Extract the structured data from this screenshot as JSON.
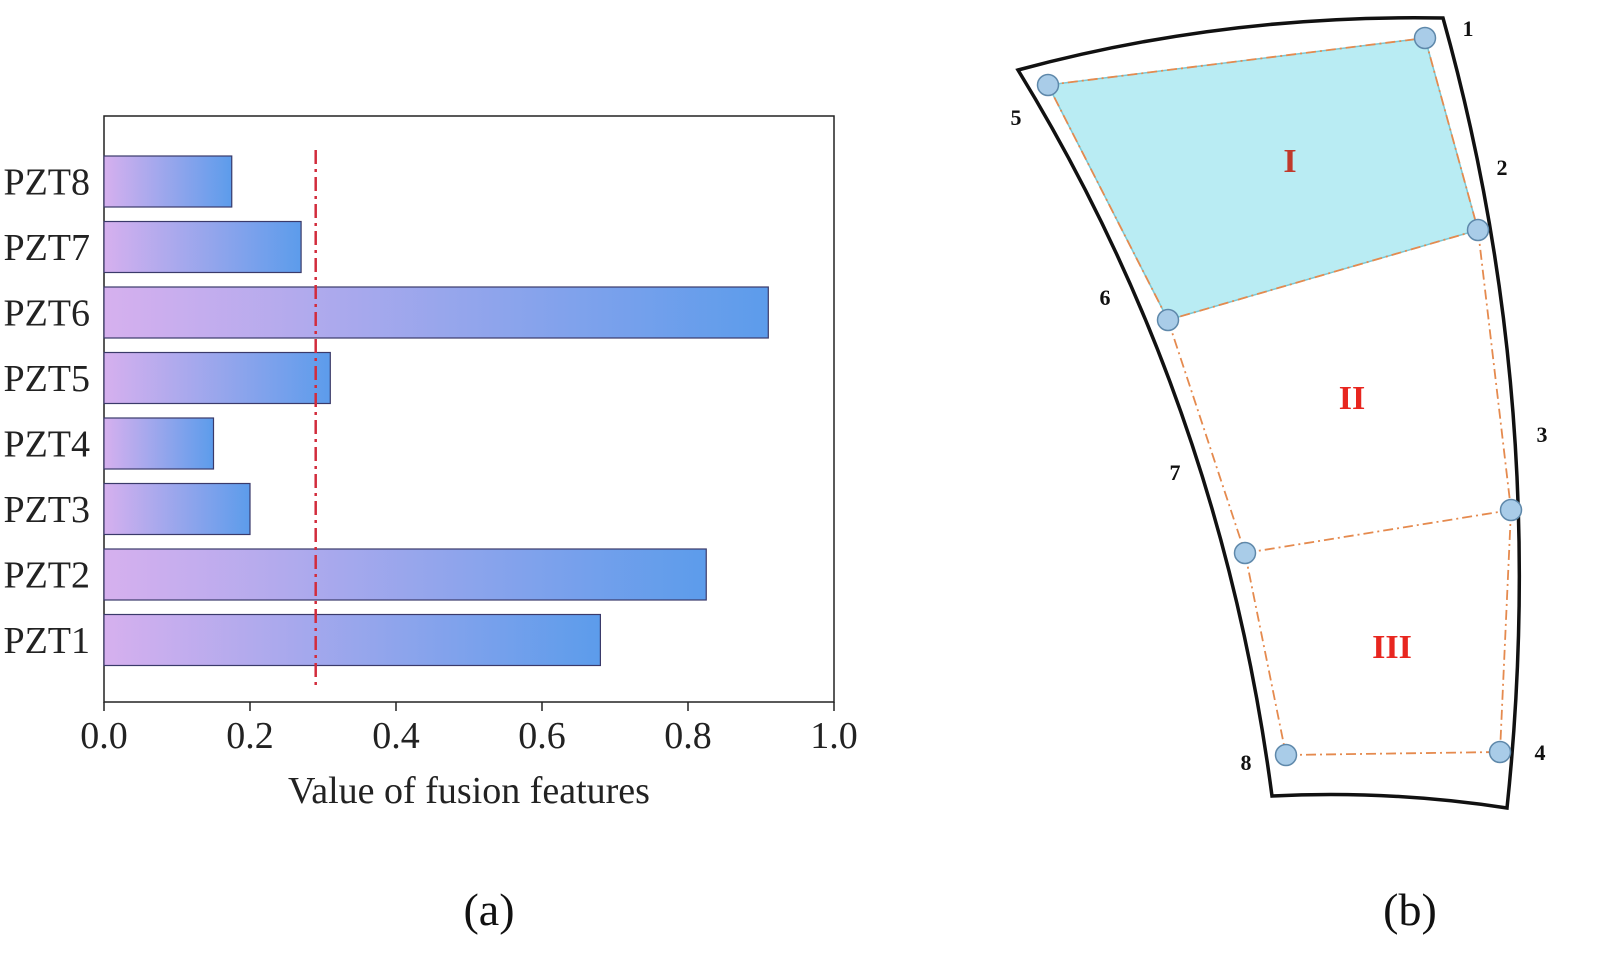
{
  "chart_data": {
    "type": "bar",
    "orientation": "horizontal",
    "categories": [
      "PZT1",
      "PZT2",
      "PZT3",
      "PZT4",
      "PZT5",
      "PZT6",
      "PZT7",
      "PZT8"
    ],
    "values": [
      0.68,
      0.825,
      0.2,
      0.15,
      0.31,
      0.91,
      0.27,
      0.175
    ],
    "xlabel": "Value of fusion features",
    "ylabel": "",
    "xlim": [
      0.0,
      1.0
    ],
    "xticks": [
      "0.0",
      "0.2",
      "0.4",
      "0.6",
      "0.8",
      "1.0"
    ],
    "threshold": 0.29,
    "grid": false,
    "colors": {
      "bar_start": "#d6b0ee",
      "bar_end": "#5c9ceb",
      "bar_edge": "#3a3a6a",
      "threshold_line": "#d22c3c"
    }
  },
  "diagram": {
    "nodes": [
      {
        "id": "1",
        "label": "1"
      },
      {
        "id": "2",
        "label": "2"
      },
      {
        "id": "3",
        "label": "3"
      },
      {
        "id": "4",
        "label": "4"
      },
      {
        "id": "5",
        "label": "5"
      },
      {
        "id": "6",
        "label": "6"
      },
      {
        "id": "7",
        "label": "7"
      },
      {
        "id": "8",
        "label": "8"
      }
    ],
    "regions": [
      {
        "label": "I",
        "highlighted": true,
        "color": "#b9ecf3",
        "text_color": "#c0392b"
      },
      {
        "label": "II",
        "highlighted": false,
        "color": "#ffffff",
        "text_color": "#e8261f"
      },
      {
        "label": "III",
        "highlighted": false,
        "color": "#ffffff",
        "text_color": "#e8261f"
      }
    ],
    "colors": {
      "node_fill": "#a9cce8",
      "node_edge": "#5e88aa",
      "path_line": "#e58a4e",
      "outline": "#111111"
    }
  },
  "panels": {
    "left_label": "(a)",
    "right_label": "(b)"
  }
}
